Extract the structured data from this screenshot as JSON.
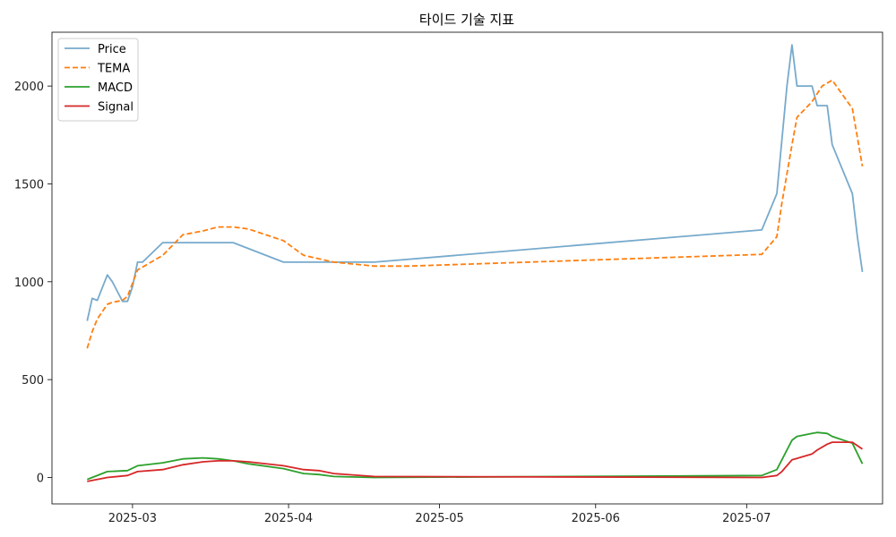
{
  "chart_data": {
    "type": "line",
    "title": "타이드 기술 지표",
    "xlabel": "",
    "ylabel": "",
    "x_ticks": [
      {
        "date": "2025-03-01",
        "label": "2025-03"
      },
      {
        "date": "2025-04-01",
        "label": "2025-04"
      },
      {
        "date": "2025-05-01",
        "label": "2025-05"
      },
      {
        "date": "2025-06-01",
        "label": "2025-06"
      },
      {
        "date": "2025-07-01",
        "label": "2025-07"
      }
    ],
    "y_ticks": [
      0,
      500,
      1000,
      1500,
      2000
    ],
    "xlim": [
      "2025-02-13",
      "2025-07-28"
    ],
    "ylim": [
      -135,
      2275
    ],
    "grid": false,
    "legend_position": "top-left",
    "series": [
      {
        "name": "Price",
        "color": "#77aacc",
        "style": "solid",
        "points": [
          [
            "2025-02-20",
            800
          ],
          [
            "2025-02-21",
            915
          ],
          [
            "2025-02-22",
            905
          ],
          [
            "2025-02-24",
            1035
          ],
          [
            "2025-02-25",
            1000
          ],
          [
            "2025-02-27",
            900
          ],
          [
            "2025-02-28",
            900
          ],
          [
            "2025-03-01",
            975
          ],
          [
            "2025-03-02",
            1100
          ],
          [
            "2025-03-03",
            1100
          ],
          [
            "2025-03-07",
            1200
          ],
          [
            "2025-03-15",
            1200
          ],
          [
            "2025-03-21",
            1200
          ],
          [
            "2025-03-31",
            1100
          ],
          [
            "2025-04-04",
            1100
          ],
          [
            "2025-04-07",
            1100
          ],
          [
            "2025-04-10",
            1100
          ],
          [
            "2025-04-14",
            1100
          ],
          [
            "2025-04-18",
            1100
          ],
          [
            "2025-07-04",
            1265
          ],
          [
            "2025-07-07",
            1450
          ],
          [
            "2025-07-09",
            2000
          ],
          [
            "2025-07-10",
            2210
          ],
          [
            "2025-07-11",
            2000
          ],
          [
            "2025-07-14",
            2000
          ],
          [
            "2025-07-15",
            1900
          ],
          [
            "2025-07-17",
            1900
          ],
          [
            "2025-07-18",
            1700
          ],
          [
            "2025-07-22",
            1450
          ],
          [
            "2025-07-23",
            1230
          ],
          [
            "2025-07-24",
            1050
          ]
        ]
      },
      {
        "name": "TEMA",
        "color": "#ff7f0e",
        "style": "dashed",
        "points": [
          [
            "2025-02-20",
            660
          ],
          [
            "2025-02-21",
            745
          ],
          [
            "2025-02-22",
            810
          ],
          [
            "2025-02-24",
            885
          ],
          [
            "2025-02-25",
            895
          ],
          [
            "2025-02-27",
            905
          ],
          [
            "2025-02-28",
            925
          ],
          [
            "2025-03-02",
            1060
          ],
          [
            "2025-03-07",
            1135
          ],
          [
            "2025-03-11",
            1240
          ],
          [
            "2025-03-15",
            1260
          ],
          [
            "2025-03-18",
            1280
          ],
          [
            "2025-03-21",
            1280
          ],
          [
            "2025-03-24",
            1270
          ],
          [
            "2025-03-31",
            1210
          ],
          [
            "2025-04-04",
            1135
          ],
          [
            "2025-04-10",
            1100
          ],
          [
            "2025-04-18",
            1080
          ],
          [
            "2025-04-25",
            1080
          ],
          [
            "2025-07-04",
            1140
          ],
          [
            "2025-07-07",
            1230
          ],
          [
            "2025-07-08",
            1400
          ],
          [
            "2025-07-10",
            1700
          ],
          [
            "2025-07-11",
            1840
          ],
          [
            "2025-07-14",
            1920
          ],
          [
            "2025-07-16",
            2000
          ],
          [
            "2025-07-18",
            2030
          ],
          [
            "2025-07-22",
            1885
          ],
          [
            "2025-07-24",
            1590
          ]
        ]
      },
      {
        "name": "MACD",
        "color": "#2ca02c",
        "style": "solid",
        "points": [
          [
            "2025-02-20",
            -10
          ],
          [
            "2025-02-21",
            0
          ],
          [
            "2025-02-24",
            30
          ],
          [
            "2025-02-28",
            35
          ],
          [
            "2025-03-02",
            60
          ],
          [
            "2025-03-07",
            75
          ],
          [
            "2025-03-11",
            95
          ],
          [
            "2025-03-15",
            100
          ],
          [
            "2025-03-18",
            95
          ],
          [
            "2025-03-21",
            85
          ],
          [
            "2025-03-24",
            70
          ],
          [
            "2025-03-31",
            45
          ],
          [
            "2025-04-04",
            20
          ],
          [
            "2025-04-07",
            15
          ],
          [
            "2025-04-10",
            5
          ],
          [
            "2025-04-18",
            0
          ],
          [
            "2025-07-04",
            10
          ],
          [
            "2025-07-07",
            40
          ],
          [
            "2025-07-08",
            90
          ],
          [
            "2025-07-10",
            190
          ],
          [
            "2025-07-11",
            210
          ],
          [
            "2025-07-14",
            225
          ],
          [
            "2025-07-15",
            230
          ],
          [
            "2025-07-17",
            225
          ],
          [
            "2025-07-18",
            210
          ],
          [
            "2025-07-22",
            175
          ],
          [
            "2025-07-24",
            70
          ]
        ]
      },
      {
        "name": "Signal",
        "color": "#d62728",
        "style": "solid",
        "points": [
          [
            "2025-02-20",
            -20
          ],
          [
            "2025-02-24",
            0
          ],
          [
            "2025-02-28",
            10
          ],
          [
            "2025-03-02",
            30
          ],
          [
            "2025-03-07",
            40
          ],
          [
            "2025-03-11",
            65
          ],
          [
            "2025-03-15",
            80
          ],
          [
            "2025-03-18",
            85
          ],
          [
            "2025-03-21",
            85
          ],
          [
            "2025-03-24",
            80
          ],
          [
            "2025-03-31",
            60
          ],
          [
            "2025-04-04",
            40
          ],
          [
            "2025-04-07",
            35
          ],
          [
            "2025-04-10",
            20
          ],
          [
            "2025-04-18",
            5
          ],
          [
            "2025-07-04",
            0
          ],
          [
            "2025-07-07",
            10
          ],
          [
            "2025-07-08",
            30
          ],
          [
            "2025-07-10",
            90
          ],
          [
            "2025-07-14",
            120
          ],
          [
            "2025-07-15",
            140
          ],
          [
            "2025-07-17",
            170
          ],
          [
            "2025-07-18",
            180
          ],
          [
            "2025-07-22",
            180
          ],
          [
            "2025-07-24",
            145
          ]
        ]
      }
    ]
  }
}
